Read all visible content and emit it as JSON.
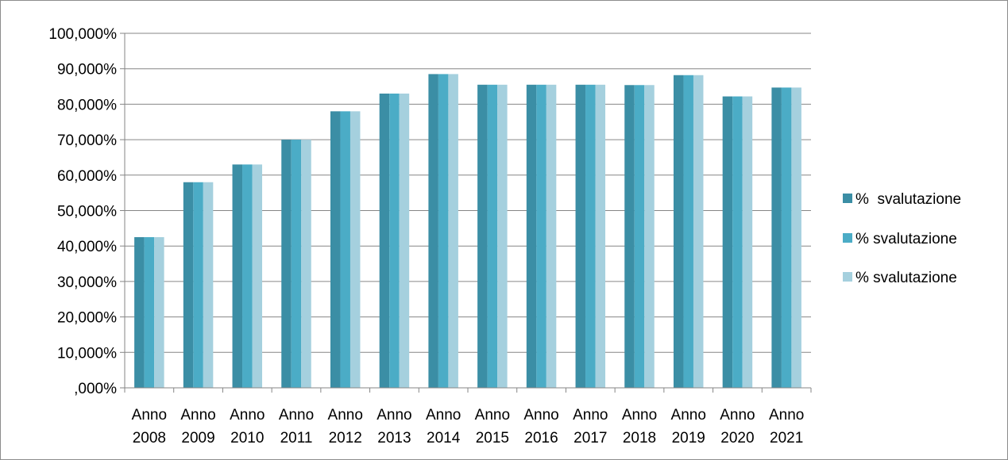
{
  "chart_data": {
    "type": "bar",
    "categories": [
      [
        "Anno",
        "2008"
      ],
      [
        "Anno",
        "2009"
      ],
      [
        "Anno",
        "2010"
      ],
      [
        "Anno",
        "2011"
      ],
      [
        "Anno",
        "2012"
      ],
      [
        "Anno",
        "2013"
      ],
      [
        "Anno",
        "2014"
      ],
      [
        "Anno",
        "2015"
      ],
      [
        "Anno",
        "2016"
      ],
      [
        "Anno",
        "2017"
      ],
      [
        "Anno",
        "2018"
      ],
      [
        "Anno",
        "2019"
      ],
      [
        "Anno",
        "2020"
      ],
      [
        "Anno",
        "2021"
      ]
    ],
    "series": [
      {
        "name": "%  svalutazione",
        "color": "#3b8ea5",
        "values": [
          42.5,
          58,
          63,
          70,
          78,
          83,
          88.5,
          85.5,
          85.5,
          85.5,
          85.4,
          88.2,
          82.2,
          84.7
        ]
      },
      {
        "name": "% svalutazione",
        "color": "#4bacc6",
        "values": [
          42.5,
          58,
          63,
          70,
          78,
          83,
          88.5,
          85.5,
          85.5,
          85.5,
          85.4,
          88.2,
          82.2,
          84.7
        ]
      },
      {
        "name": "% svalutazione",
        "color": "#a5d0de",
        "values": [
          42.5,
          58,
          63,
          70,
          78,
          83,
          88.5,
          85.5,
          85.5,
          85.5,
          85.4,
          88.2,
          82.2,
          84.7
        ]
      }
    ],
    "ylim": [
      0,
      100
    ],
    "yticks": [
      0,
      10,
      20,
      30,
      40,
      50,
      60,
      70,
      80,
      90,
      100
    ],
    "ytick_labels": [
      ",000%",
      "10,000%",
      "20,000%",
      "30,000%",
      "40,000%",
      "50,000%",
      "60,000%",
      "70,000%",
      "80,000%",
      "90,000%",
      "100,000%"
    ],
    "grid": true,
    "legend_position": "right",
    "title": "",
    "xlabel": "",
    "ylabel": ""
  }
}
